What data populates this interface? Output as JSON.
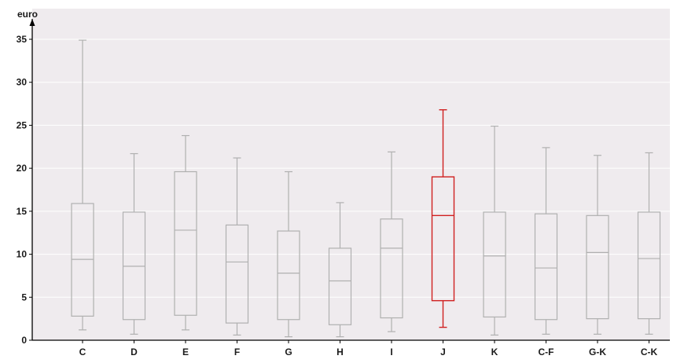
{
  "chart_data": {
    "type": "boxplot",
    "ylabel": "euro",
    "ylim": [
      0,
      37
    ],
    "yticks": [
      0,
      5,
      10,
      15,
      20,
      25,
      30,
      35
    ],
    "grid": true,
    "categories": [
      "C",
      "D",
      "E",
      "F",
      "G",
      "H",
      "I",
      "J",
      "K",
      "C-F",
      "G-K",
      "C-K"
    ],
    "boxes": [
      {
        "label": "C",
        "whisker_low": 1.2,
        "q1": 2.8,
        "median": 9.4,
        "q3": 15.9,
        "whisker_high": 34.9,
        "highlight": false
      },
      {
        "label": "D",
        "whisker_low": 0.7,
        "q1": 2.4,
        "median": 8.6,
        "q3": 14.9,
        "whisker_high": 21.7,
        "highlight": false
      },
      {
        "label": "E",
        "whisker_low": 1.2,
        "q1": 2.9,
        "median": 12.8,
        "q3": 19.6,
        "whisker_high": 23.8,
        "highlight": false
      },
      {
        "label": "F",
        "whisker_low": 0.6,
        "q1": 2.0,
        "median": 9.1,
        "q3": 13.4,
        "whisker_high": 21.2,
        "highlight": false
      },
      {
        "label": "G",
        "whisker_low": 0.4,
        "q1": 2.4,
        "median": 7.8,
        "q3": 12.7,
        "whisker_high": 19.6,
        "highlight": false
      },
      {
        "label": "H",
        "whisker_low": 0.4,
        "q1": 1.8,
        "median": 6.9,
        "q3": 10.7,
        "whisker_high": 16.0,
        "highlight": false
      },
      {
        "label": "I",
        "whisker_low": 1.0,
        "q1": 2.6,
        "median": 10.7,
        "q3": 14.1,
        "whisker_high": 21.9,
        "highlight": false
      },
      {
        "label": "J",
        "whisker_low": 1.5,
        "q1": 4.6,
        "median": 14.5,
        "q3": 19.0,
        "whisker_high": 26.8,
        "highlight": true
      },
      {
        "label": "K",
        "whisker_low": 0.6,
        "q1": 2.7,
        "median": 9.8,
        "q3": 14.9,
        "whisker_high": 24.9,
        "highlight": false
      },
      {
        "label": "C-F",
        "whisker_low": 0.7,
        "q1": 2.4,
        "median": 8.4,
        "q3": 14.7,
        "whisker_high": 22.4,
        "highlight": false
      },
      {
        "label": "G-K",
        "whisker_low": 0.7,
        "q1": 2.5,
        "median": 10.2,
        "q3": 14.5,
        "whisker_high": 21.5,
        "highlight": false
      },
      {
        "label": "C-K",
        "whisker_low": 0.7,
        "q1": 2.5,
        "median": 9.5,
        "q3": 14.9,
        "whisker_high": 21.8,
        "highlight": false
      }
    ],
    "colors": {
      "background": "#efebee",
      "grid": "#ffffff",
      "box": "#b0b0b0",
      "highlight": "#d02020",
      "axis": "#000000",
      "text": "#1a1a1a"
    }
  }
}
